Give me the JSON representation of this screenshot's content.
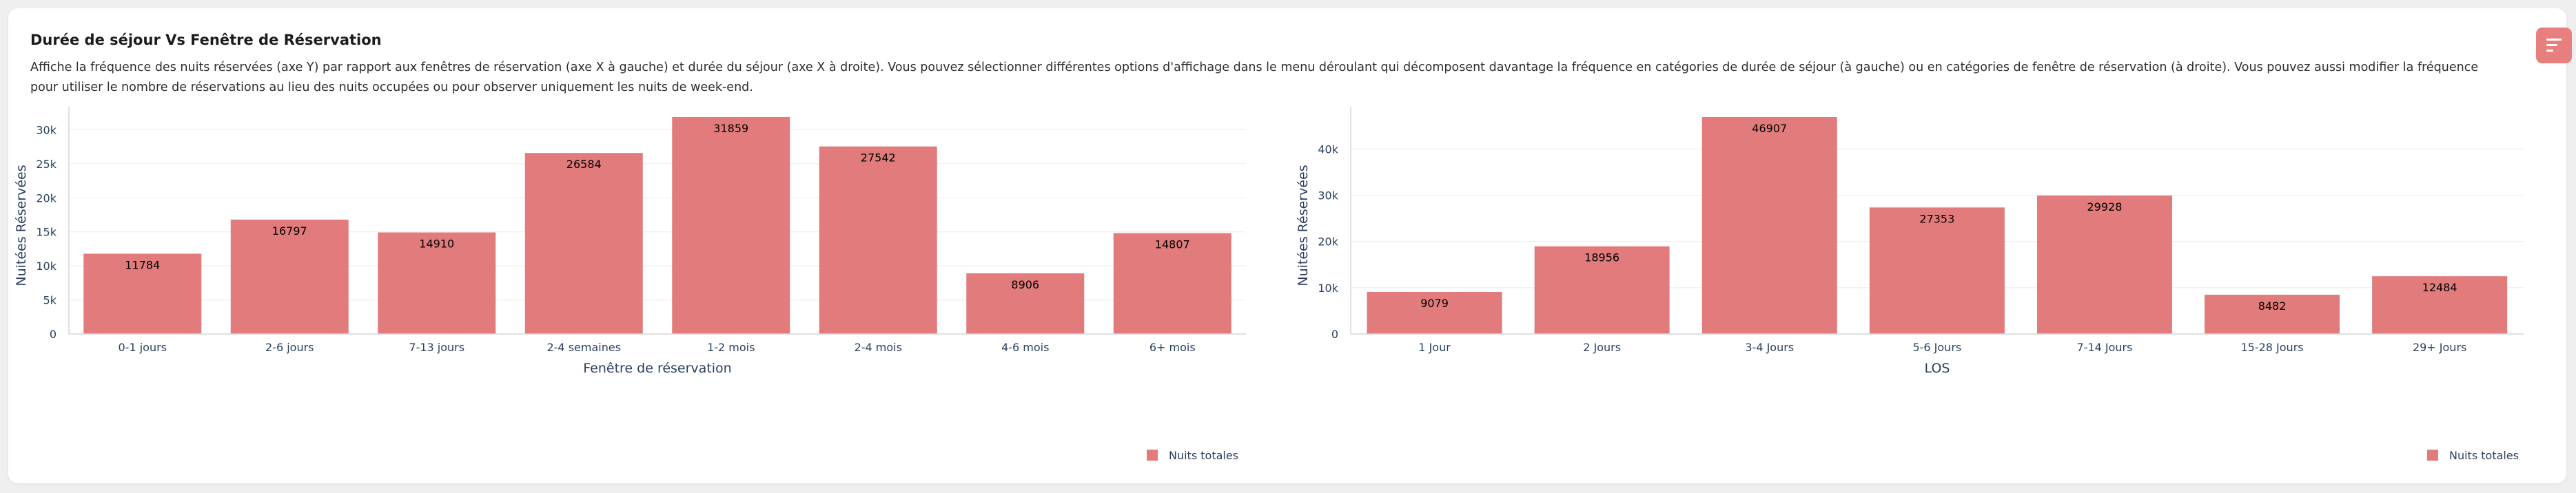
{
  "header": {
    "title": "Durée de séjour Vs Fenêtre de Réservation",
    "description": "Affiche la fréquence des nuits réservées (axe Y) par rapport aux fenêtres de réservation (axe X à gauche) et durée du séjour (axe X à droite). Vous pouvez sélectionner différentes options d'affichage dans le menu déroulant qui décomposent davantage la fréquence en catégories de durée de séjour (à gauche) ou en catégories de fenêtre de réservation (à droite). Vous pouvez aussi modifier la fréquence pour utiliser le nombre de réservations au lieu des nuits occupées ou pour observer uniquement les nuits de week-end.",
    "menu_icon": "filter-lines-icon"
  },
  "colors": {
    "bar": "#e27b7b",
    "menu_button": "#e87f7f",
    "axis_text": "#2a3f5f",
    "grid": "#ebebeb"
  },
  "chart_data": [
    {
      "type": "bar",
      "title": "",
      "xlabel": "Fenêtre de réservation",
      "ylabel": "Nuitées Réservées",
      "categories": [
        "0-1 jours",
        "2-6 jours",
        "7-13 jours",
        "2-4 semaines",
        "1-2 mois",
        "2-4 mois",
        "4-6 mois",
        "6+ mois"
      ],
      "series": [
        {
          "name": "Nuits totales",
          "values": [
            11784,
            16797,
            14910,
            26584,
            31859,
            27542,
            8906,
            14807
          ]
        }
      ],
      "ylim": [
        0,
        31859
      ],
      "yticks": [
        0,
        5000,
        10000,
        15000,
        20000,
        25000,
        30000
      ],
      "ytick_labels": [
        "0",
        "5k",
        "10k",
        "15k",
        "20k",
        "25k",
        "30k"
      ],
      "data_labels": true,
      "grid": true,
      "legend_position": "bottom-right"
    },
    {
      "type": "bar",
      "title": "",
      "xlabel": "LOS",
      "ylabel": "Nuitées Réservées",
      "categories": [
        "1 Jour",
        "2 Jours",
        "3-4 Jours",
        "5-6 Jours",
        "7-14 Jours",
        "15-28 Jours",
        "29+ Jours"
      ],
      "series": [
        {
          "name": "Nuits totales",
          "values": [
            9079,
            18956,
            46907,
            27353,
            29928,
            8482,
            12484
          ]
        }
      ],
      "ylim": [
        0,
        46907
      ],
      "yticks": [
        0,
        10000,
        20000,
        30000,
        40000
      ],
      "ytick_labels": [
        "0",
        "10k",
        "20k",
        "30k",
        "40k"
      ],
      "data_labels": true,
      "grid": true,
      "legend_position": "bottom-right"
    }
  ]
}
